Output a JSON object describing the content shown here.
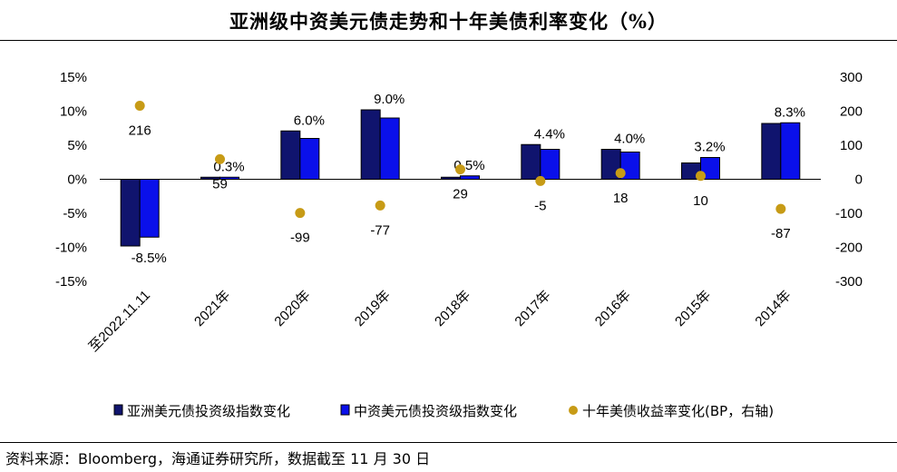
{
  "title": "亚洲级中资美元债走势和十年美债利率变化（%）",
  "source": "资料来源：Bloomberg，海通证券研究所，数据截至 11 月 30 日",
  "colors": {
    "asia_ig": "#10146e",
    "china_ig": "#0a10ea",
    "ust10y": "#c79b16"
  },
  "chart_data": {
    "type": "bar",
    "categories": [
      "至2022.11.11",
      "2021年",
      "2020年",
      "2019年",
      "2018年",
      "2017年",
      "2016年",
      "2015年",
      "2014年"
    ],
    "series": [
      {
        "name": "亚洲美元债投资级指数变化",
        "values": [
          -9.8,
          0.3,
          7.1,
          10.2,
          0.3,
          5.1,
          4.4,
          2.4,
          8.2
        ],
        "axis": "left",
        "kind": "bar"
      },
      {
        "name": "中资美元债投资级指数变化",
        "values": [
          -8.5,
          0.3,
          6.0,
          9.0,
          0.5,
          4.4,
          4.0,
          3.2,
          8.3
        ],
        "axis": "left",
        "kind": "bar"
      },
      {
        "name": "十年美债收益率变化(BP，右轴)",
        "values": [
          216,
          59,
          -99,
          -77,
          29,
          -5,
          18,
          10,
          -87
        ],
        "axis": "right",
        "kind": "scatter"
      }
    ],
    "bar_data_labels": [
      "-8.5%",
      "0.3%",
      "6.0%",
      "9.0%",
      "0.5%",
      "4.4%",
      "4.0%",
      "3.2%",
      "8.3%"
    ],
    "point_data_labels": [
      "216",
      "59",
      "-99",
      "-77",
      "29",
      "-5",
      "18",
      "10",
      "-87"
    ],
    "y_left": {
      "ylim": [
        -15,
        15
      ],
      "ticks": [
        "15%",
        "10%",
        "5%",
        "0%",
        "-5%",
        "-10%",
        "-15%"
      ]
    },
    "y_right": {
      "ylim": [
        -300,
        300
      ],
      "ticks": [
        "300",
        "200",
        "100",
        "0",
        "-100",
        "-200",
        "-300"
      ]
    },
    "grid": false,
    "legend": "bottom"
  }
}
